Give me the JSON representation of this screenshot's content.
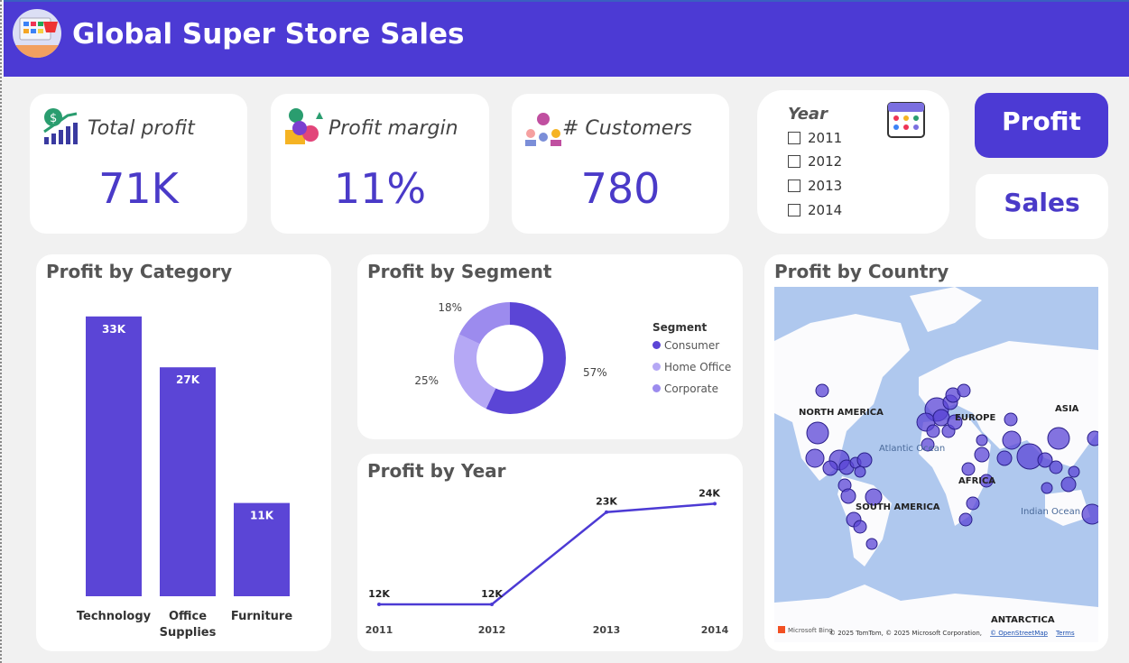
{
  "header": {
    "title": "Global Super Store Sales",
    "logo_icon": "store-monitor-basket-icon"
  },
  "colors": {
    "header": "#4C3AD4",
    "accent": "#5B45D6",
    "home_office": "#B5A8F5",
    "corporate": "#9C8BEE",
    "map_water": "#AFC8EE"
  },
  "kpis": [
    {
      "label": "Total profit",
      "value": "71K",
      "icon": "money-growth-chart-icon"
    },
    {
      "label": "Profit margin",
      "value": "11%",
      "icon": "profit-margin-icon"
    },
    {
      "label": "# Customers",
      "value": "780",
      "icon": "customers-icon"
    }
  ],
  "year_slicer": {
    "title": "Year",
    "icon": "calendar-icon",
    "options": [
      {
        "label": "2011",
        "checked": false
      },
      {
        "label": "2012",
        "checked": false
      },
      {
        "label": "2013",
        "checked": false
      },
      {
        "label": "2014",
        "checked": false
      }
    ]
  },
  "buttons": {
    "profit": "Profit",
    "sales": "Sales"
  },
  "category_chart": {
    "title": "Profit by Category"
  },
  "segment_chart": {
    "title": "Profit by Segment",
    "legend_title": "Segment"
  },
  "year_chart": {
    "title": "Profit by Year"
  },
  "map": {
    "title": "Profit by Country",
    "labels": {
      "na": "NORTH AMERICA",
      "sa": "SOUTH AMERICA",
      "eu": "EUROPE",
      "af": "AFRICA",
      "as": "ASIA",
      "an": "ANTARCTICA",
      "atl": "Atlantic Ocean",
      "ind": "Indian Ocean"
    },
    "attribution": {
      "brand": "Microsoft Bing",
      "copyright": "© 2025 TomTom, © 2025 Microsoft Corporation,",
      "osm": "© OpenStreetMap",
      "terms": "Terms"
    }
  },
  "chart_data": [
    {
      "type": "bar",
      "title": "Profit by Category",
      "categories": [
        "Technology",
        "Office Supplies",
        "Furniture"
      ],
      "values": [
        33,
        27,
        11
      ],
      "data_labels": [
        "33K",
        "27K",
        "11K"
      ],
      "unit": "K"
    },
    {
      "type": "pie",
      "title": "Profit by Segment",
      "categories": [
        "Consumer",
        "Home Office",
        "Corporate"
      ],
      "values": [
        57,
        25,
        18
      ],
      "data_labels": [
        "57%",
        "25%",
        "18%"
      ],
      "legend": "right",
      "donut": true
    },
    {
      "type": "line",
      "title": "Profit by Year",
      "x": [
        "2011",
        "2012",
        "2013",
        "2014"
      ],
      "values": [
        12,
        12,
        23,
        24
      ],
      "data_labels": [
        "12K",
        "12K",
        "23K",
        "24K"
      ]
    }
  ]
}
